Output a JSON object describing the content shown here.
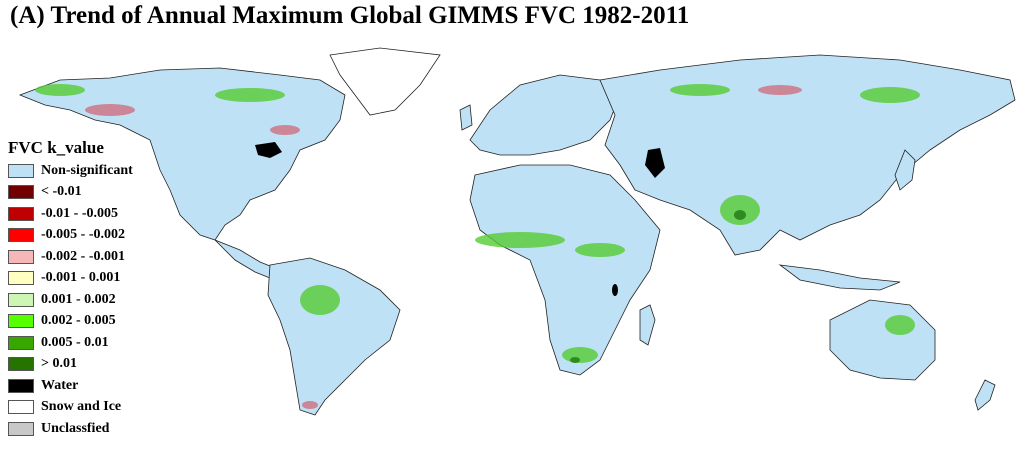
{
  "title": "(A) Trend of Annual Maximum Global GIMMS FVC 1982-2011",
  "legend": {
    "title": "FVC k_value",
    "items": [
      {
        "label": "Non-significant",
        "color": "#bfe1f5"
      },
      {
        "label": "< -0.01",
        "color": "#730000"
      },
      {
        "label": "-0.01 - -0.005",
        "color": "#c00000"
      },
      {
        "label": "-0.005 - -0.002",
        "color": "#ff0000"
      },
      {
        "label": "-0.002 - -0.001",
        "color": "#f5b7b7"
      },
      {
        "label": "-0.001 - 0.001",
        "color": "#ffffbf"
      },
      {
        "label": "0.001 - 0.002",
        "color": "#cdf5b4"
      },
      {
        "label": "0.002 - 0.005",
        "color": "#55ff00"
      },
      {
        "label": "0.005 - 0.01",
        "color": "#38a800"
      },
      {
        "label": "> 0.01",
        "color": "#267300"
      },
      {
        "label": "Water",
        "color": "#000000"
      },
      {
        "label": "Snow and Ice",
        "color": "#ffffff"
      },
      {
        "label": "Unclassfied",
        "color": "#c8c8c8"
      }
    ]
  },
  "map_colors": {
    "land": "#bfe1f5",
    "green": "#55cc33",
    "dark_green": "#2e8b22",
    "red": "#d06070",
    "water": "#000000",
    "border": "#222222"
  }
}
